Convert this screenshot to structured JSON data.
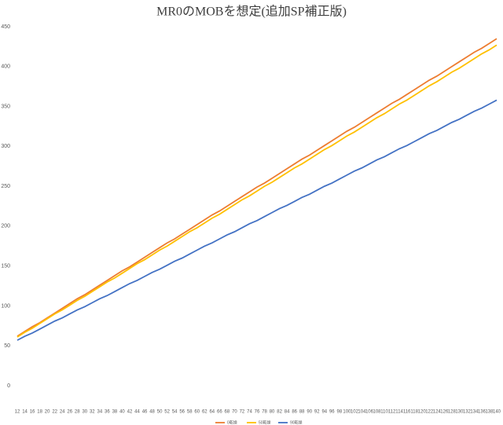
{
  "chart_data": {
    "type": "line",
    "title": "MR0のMOBを想定(追加SP補正版)",
    "categories": [
      12,
      14,
      16,
      18,
      20,
      22,
      24,
      26,
      28,
      30,
      32,
      34,
      36,
      38,
      40,
      42,
      44,
      46,
      48,
      50,
      52,
      54,
      56,
      58,
      60,
      62,
      64,
      66,
      68,
      70,
      72,
      74,
      76,
      78,
      80,
      82,
      84,
      86,
      88,
      90,
      92,
      94,
      96,
      98,
      100,
      102,
      104,
      106,
      108,
      110,
      112,
      114,
      116,
      118,
      120,
      122,
      124,
      126,
      128,
      130,
      132,
      134,
      136,
      138,
      140
    ],
    "series": [
      {
        "name": "0乾燥",
        "color": "#ed7d31",
        "values": [
          62,
          68,
          74,
          79,
          85,
          91,
          97,
          103,
          109,
          114,
          120,
          126,
          132,
          138,
          144,
          149,
          155,
          161,
          167,
          173,
          179,
          184,
          190,
          196,
          202,
          208,
          214,
          219,
          225,
          231,
          237,
          243,
          249,
          254,
          260,
          266,
          272,
          278,
          284,
          289,
          295,
          301,
          307,
          313,
          319,
          324,
          330,
          336,
          342,
          348,
          354,
          359,
          365,
          371,
          377,
          383,
          388,
          394,
          400,
          406,
          412,
          418,
          423,
          429,
          435
        ]
      },
      {
        "name": "50乾燥",
        "color": "#ffc000",
        "values": [
          61,
          67,
          72,
          78,
          84,
          90,
          95,
          101,
          107,
          112,
          118,
          124,
          130,
          135,
          141,
          147,
          153,
          158,
          164,
          170,
          175,
          181,
          187,
          193,
          198,
          204,
          210,
          215,
          221,
          227,
          233,
          238,
          244,
          250,
          255,
          261,
          267,
          273,
          278,
          284,
          290,
          296,
          301,
          307,
          313,
          318,
          324,
          330,
          336,
          341,
          347,
          353,
          358,
          364,
          370,
          376,
          381,
          387,
          393,
          398,
          404,
          410,
          416,
          421,
          427
        ]
      },
      {
        "name": "90乾燥",
        "color": "#4472c4",
        "values": [
          57,
          62,
          66,
          71,
          76,
          81,
          85,
          90,
          95,
          99,
          104,
          109,
          113,
          118,
          123,
          128,
          132,
          137,
          142,
          146,
          151,
          156,
          160,
          165,
          170,
          175,
          179,
          184,
          189,
          193,
          198,
          203,
          207,
          212,
          217,
          222,
          226,
          231,
          236,
          240,
          245,
          250,
          254,
          259,
          264,
          269,
          273,
          278,
          283,
          287,
          292,
          297,
          301,
          306,
          311,
          316,
          320,
          325,
          330,
          334,
          339,
          344,
          348,
          353,
          358
        ]
      }
    ],
    "ylim": [
      0,
      450
    ],
    "yticks": [
      0,
      50,
      100,
      150,
      200,
      250,
      300,
      350,
      400,
      450
    ],
    "grid": false
  }
}
